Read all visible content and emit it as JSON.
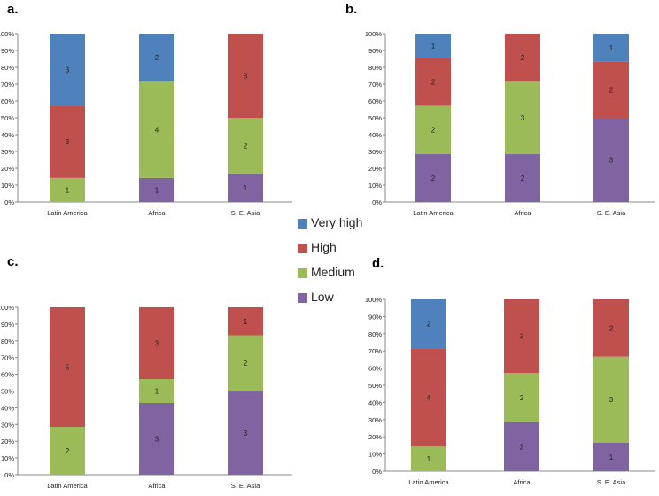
{
  "colors": {
    "Very high": "#4f81bd",
    "High": "#c0504d",
    "Medium": "#9bbb59",
    "Low": "#8064a2"
  },
  "legend": {
    "items": [
      "Very high",
      "High",
      "Medium",
      "Low"
    ]
  },
  "chart_data": [
    {
      "panel": "a.",
      "type": "bar",
      "stacked": true,
      "normalized": true,
      "categories": [
        "Latin America",
        "Africa",
        "S. E. Asia"
      ],
      "yticks": [
        "0%",
        "10%",
        "20%",
        "30%",
        "40%",
        "50%",
        "60%",
        "70%",
        "80%",
        "90%",
        "100%"
      ],
      "ylim": [
        0,
        100
      ],
      "series": [
        {
          "name": "Low",
          "values": [
            0,
            1,
            1
          ]
        },
        {
          "name": "Medium",
          "values": [
            1,
            4,
            2
          ]
        },
        {
          "name": "High",
          "values": [
            3,
            0,
            3
          ]
        },
        {
          "name": "Very high",
          "values": [
            3,
            2,
            0
          ]
        }
      ]
    },
    {
      "panel": "b.",
      "type": "bar",
      "stacked": true,
      "normalized": true,
      "categories": [
        "Latin America",
        "Africa",
        "S. E. Asia"
      ],
      "yticks": [
        "0%",
        "10%",
        "20%",
        "30%",
        "40%",
        "50%",
        "60%",
        "70%",
        "80%",
        "90%",
        "100%"
      ],
      "ylim": [
        0,
        100
      ],
      "series": [
        {
          "name": "Low",
          "values": [
            2,
            2,
            3
          ]
        },
        {
          "name": "Medium",
          "values": [
            2,
            3,
            0
          ]
        },
        {
          "name": "High",
          "values": [
            2,
            2,
            2
          ]
        },
        {
          "name": "Very high",
          "values": [
            1,
            0,
            1
          ]
        }
      ]
    },
    {
      "panel": "c.",
      "type": "bar",
      "stacked": true,
      "normalized": true,
      "categories": [
        "Latin America",
        "Africa",
        "S. E. Asia"
      ],
      "yticks": [
        "0%",
        "10%",
        "20%",
        "30%",
        "40%",
        "50%",
        "60%",
        "70%",
        "80%",
        "90%",
        "100%"
      ],
      "ylim": [
        0,
        100
      ],
      "series": [
        {
          "name": "Low",
          "values": [
            0,
            3,
            3
          ]
        },
        {
          "name": "Medium",
          "values": [
            2,
            1,
            2
          ]
        },
        {
          "name": "High",
          "values": [
            5,
            3,
            1
          ]
        },
        {
          "name": "Very high",
          "values": [
            0,
            0,
            0
          ]
        }
      ]
    },
    {
      "panel": "d.",
      "type": "bar",
      "stacked": true,
      "normalized": true,
      "categories": [
        "Latin America",
        "Africa",
        "S. E. Asia"
      ],
      "yticks": [
        "0%",
        "10%",
        "20%",
        "30%",
        "40%",
        "50%",
        "60%",
        "70%",
        "80%",
        "90%",
        "100%"
      ],
      "ylim": [
        0,
        100
      ],
      "series": [
        {
          "name": "Low",
          "values": [
            0,
            2,
            1
          ]
        },
        {
          "name": "Medium",
          "values": [
            1,
            2,
            3
          ]
        },
        {
          "name": "High",
          "values": [
            4,
            3,
            2
          ]
        },
        {
          "name": "Very high",
          "values": [
            2,
            0,
            0
          ]
        }
      ]
    }
  ]
}
